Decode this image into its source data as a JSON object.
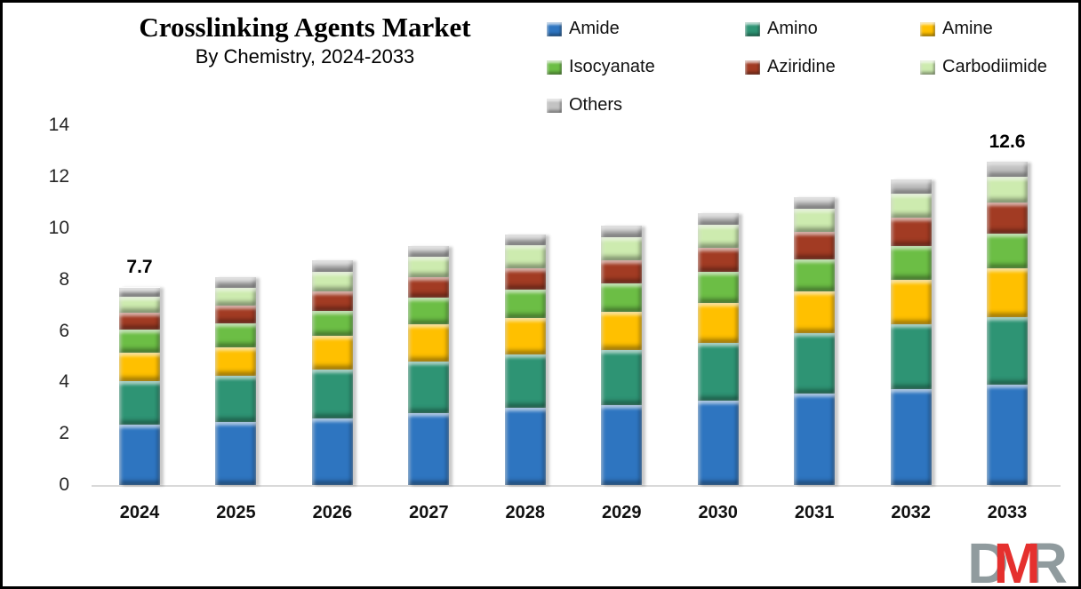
{
  "title": "Crosslinking Agents Market",
  "subtitle": "By Chemistry, 2024-2033",
  "logo": {
    "d": "D",
    "m": "M",
    "r": "R",
    "gray": "#909B9E",
    "red": "#E5302E"
  },
  "chart_data": {
    "type": "bar",
    "stacked": true,
    "grid": false,
    "legend_position": "top-right",
    "categories": [
      "2024",
      "2025",
      "2026",
      "2027",
      "2028",
      "2029",
      "2030",
      "2031",
      "2032",
      "2033"
    ],
    "series": [
      {
        "name": "Amide",
        "color": "#2E75C0",
        "values": [
          2.35,
          2.45,
          2.6,
          2.8,
          3.0,
          3.1,
          3.3,
          3.55,
          3.75,
          3.9
        ]
      },
      {
        "name": "Amino",
        "color": "#2E9474",
        "values": [
          1.7,
          1.8,
          1.9,
          2.0,
          2.1,
          2.15,
          2.25,
          2.35,
          2.5,
          2.65
        ]
      },
      {
        "name": "Amine",
        "color": "#FFC000",
        "values": [
          1.1,
          1.1,
          1.3,
          1.45,
          1.4,
          1.5,
          1.55,
          1.65,
          1.75,
          1.9
        ]
      },
      {
        "name": "Isocyanate",
        "color": "#6CBE45",
        "values": [
          0.9,
          0.95,
          1.0,
          1.05,
          1.1,
          1.1,
          1.2,
          1.25,
          1.3,
          1.35
        ]
      },
      {
        "name": "Aziridine",
        "color": "#A23B23",
        "values": [
          0.65,
          0.7,
          0.75,
          0.8,
          0.85,
          0.9,
          0.95,
          1.05,
          1.1,
          1.2
        ]
      },
      {
        "name": "Carbodiimide",
        "color": "#CDEBAF",
        "values": [
          0.65,
          0.7,
          0.75,
          0.8,
          0.9,
          0.9,
          0.9,
          0.9,
          0.95,
          1.0
        ]
      },
      {
        "name": "Others",
        "color": "#C3C3C3",
        "values": [
          0.35,
          0.4,
          0.45,
          0.4,
          0.4,
          0.45,
          0.45,
          0.45,
          0.55,
          0.6
        ]
      }
    ],
    "totals": [
      7.7,
      8.1,
      8.75,
      9.3,
      9.75,
      10.1,
      10.6,
      11.2,
      11.9,
      12.6
    ],
    "annotations": [
      {
        "category": "2024",
        "text": "7.7"
      },
      {
        "category": "2033",
        "text": "12.6"
      }
    ],
    "y_ticks": [
      0,
      2,
      4,
      6,
      8,
      10,
      12,
      14
    ],
    "ylim": [
      0,
      14
    ],
    "xlabel": "",
    "ylabel": ""
  }
}
